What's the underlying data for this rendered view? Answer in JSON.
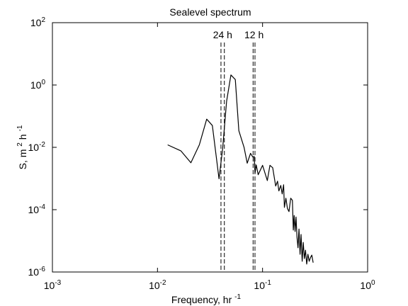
{
  "chart_data": {
    "type": "line",
    "title": "Sealevel spectrum",
    "xlabel": {
      "text": "Frequency, hr",
      "sup": "-1"
    },
    "ylabel": {
      "text": "S, m",
      "sup1": "2",
      "mid": "h",
      "sup2": "-1"
    },
    "xscale": "log",
    "yscale": "log",
    "xlim": [
      0.001,
      1
    ],
    "ylim": [
      1e-06,
      100
    ],
    "x_ticks": [
      {
        "value": 0.001,
        "label": "10",
        "exp": "-3"
      },
      {
        "value": 0.01,
        "label": "10",
        "exp": "-2"
      },
      {
        "value": 0.1,
        "label": "10",
        "exp": "-1"
      },
      {
        "value": 1,
        "label": "10",
        "exp": "0"
      }
    ],
    "y_ticks": [
      {
        "value": 1e-06,
        "label": "10",
        "exp": "-6"
      },
      {
        "value": 0.0001,
        "label": "10",
        "exp": "-4"
      },
      {
        "value": 0.01,
        "label": "10",
        "exp": "-2"
      },
      {
        "value": 1,
        "label": "10",
        "exp": "0"
      },
      {
        "value": 100,
        "label": "10",
        "exp": "2"
      }
    ],
    "grid": false,
    "series": [
      {
        "color": "#000000",
        "x": [
          0.0125,
          0.0167,
          0.0208,
          0.025,
          0.0294,
          0.0333,
          0.0385,
          0.0417,
          0.0455,
          0.05,
          0.055,
          0.0595,
          0.0667,
          0.0714,
          0.0769,
          0.0806,
          0.0833,
          0.0847,
          0.087,
          0.0909,
          0.1,
          0.1111,
          0.1176,
          0.125,
          0.1333,
          0.1389,
          0.1429,
          0.1492,
          0.1538,
          0.1587,
          0.1613,
          0.1667,
          0.1724,
          0.1786,
          0.1852,
          0.1923,
          0.1961,
          0.2,
          0.2041,
          0.2083,
          0.2128,
          0.2174,
          0.2222,
          0.2273,
          0.2326,
          0.2381,
          0.2439,
          0.25,
          0.2564,
          0.2632,
          0.2703,
          0.2778,
          0.2857,
          0.2941,
          0.303
        ],
        "y": [
          0.012,
          0.0077,
          0.0032,
          0.012,
          0.0804,
          0.05,
          0.00098,
          0.00898,
          0.3,
          2.1,
          1.5,
          0.0341,
          0.0099,
          0.0031,
          0.0064,
          0.0049,
          0.0051,
          0.00146,
          0.00273,
          0.00133,
          0.00264,
          0.00086,
          0.00265,
          0.00222,
          0.00057,
          0.00082,
          0.0004,
          0.0006,
          0.00032,
          0.00063,
          0.000118,
          0.000232,
          0.000109,
          8.7e-05,
          0.000233,
          0.000198,
          2.2e-05,
          6.5e-05,
          2e-05,
          5.8e-05,
          1.3e-05,
          6e-06,
          2.4e-05,
          3.7e-06,
          1.6e-05,
          2.2e-06,
          8.9e-06,
          2.7e-06,
          5e-06,
          1.8e-06,
          3.7e-06,
          2.2e-06,
          2.9e-06,
          3.5e-06,
          2e-06
        ]
      }
    ],
    "reference_lines": [
      {
        "label": "24 h",
        "x": [
          0.0402,
          0.0433
        ]
      },
      {
        "label": "12 h",
        "x": [
          0.0813,
          0.0847
        ]
      }
    ]
  }
}
